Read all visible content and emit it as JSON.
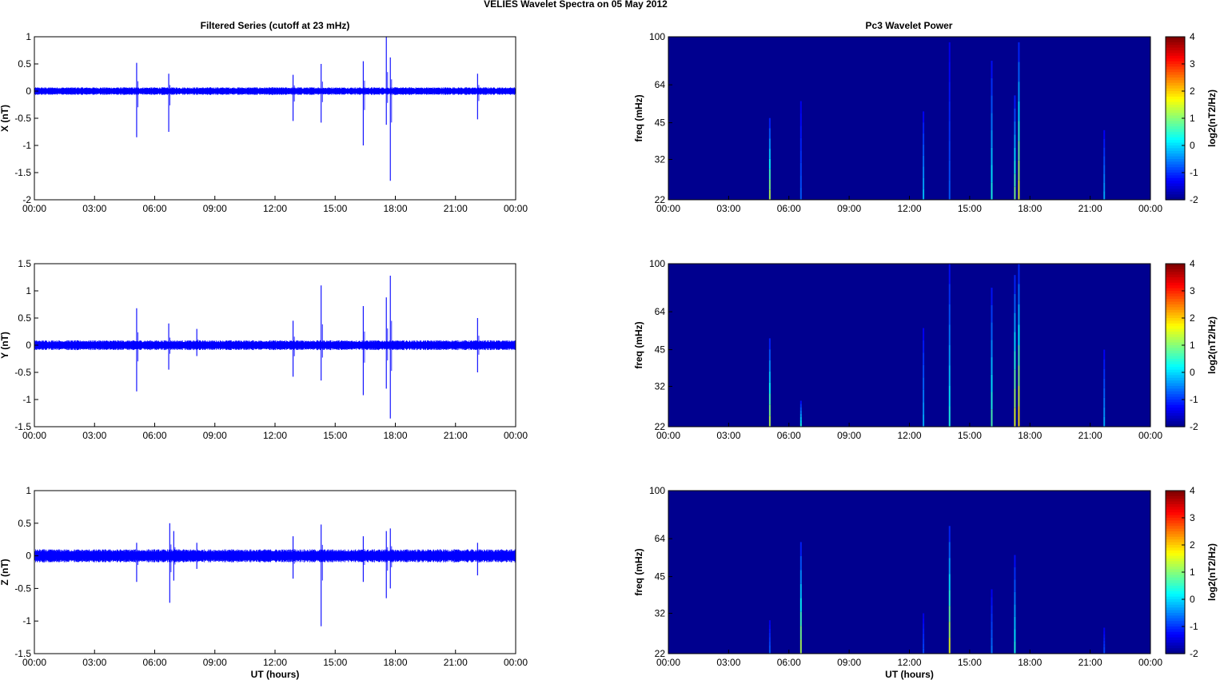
{
  "figure": {
    "title": "VELIES Wavelet Spectra on 05 May      2012",
    "left_title": "Filtered Series (cutoff at 23 mHz)",
    "right_title": "Pc3 Wavelet Power",
    "xlabel": "UT (hours)",
    "spectro_ylabel": "freq (mHz)",
    "colorbar_label": "log2(nT2/Hz)",
    "colors": {
      "trace": "#0000ff",
      "background": "#00008f"
    }
  },
  "chart_data": [
    {
      "type": "line",
      "title": "Filtered Series (cutoff at 23 mHz)",
      "ylabel": "X (nT)",
      "xlabel": "",
      "xlim": [
        "00:00",
        "24:00"
      ],
      "xticks": [
        "00:00",
        "03:00",
        "06:00",
        "09:00",
        "12:00",
        "15:00",
        "18:00",
        "21:00",
        "00:00"
      ],
      "ylim": [
        -2,
        1
      ],
      "yticks": [
        "1",
        "0.5",
        "0",
        "-0.5",
        "-1",
        "-1.5",
        "-2"
      ],
      "noise_amplitude": 0.07,
      "series": [
        {
          "spikes": [
            {
              "t": 5.1,
              "max": 0.52,
              "min": -0.85
            },
            {
              "t": 6.7,
              "max": 0.32,
              "min": -0.75
            },
            {
              "t": 12.9,
              "max": 0.3,
              "min": -0.55
            },
            {
              "t": 14.3,
              "max": 0.5,
              "min": -0.58
            },
            {
              "t": 16.4,
              "max": 0.55,
              "min": -1.0
            },
            {
              "t": 17.55,
              "max": 1.0,
              "min": -0.62
            },
            {
              "t": 17.75,
              "max": 0.62,
              "min": -1.65
            },
            {
              "t": 22.1,
              "max": 0.32,
              "min": -0.52
            }
          ]
        }
      ]
    },
    {
      "type": "line",
      "ylabel": "Y (nT)",
      "xlabel": "",
      "xlim": [
        "00:00",
        "24:00"
      ],
      "xticks": [
        "00:00",
        "03:00",
        "06:00",
        "09:00",
        "12:00",
        "15:00",
        "18:00",
        "21:00",
        "00:00"
      ],
      "ylim": [
        -1.5,
        1.5
      ],
      "yticks": [
        "1.5",
        "1",
        "0.5",
        "0",
        "-0.5",
        "-1",
        "-1.5"
      ],
      "noise_amplitude": 0.09,
      "series": [
        {
          "spikes": [
            {
              "t": 5.1,
              "max": 0.68,
              "min": -0.85
            },
            {
              "t": 6.7,
              "max": 0.4,
              "min": -0.45
            },
            {
              "t": 8.1,
              "max": 0.3,
              "min": -0.2
            },
            {
              "t": 12.9,
              "max": 0.45,
              "min": -0.58
            },
            {
              "t": 14.3,
              "max": 1.1,
              "min": -0.65
            },
            {
              "t": 16.4,
              "max": 0.72,
              "min": -0.92
            },
            {
              "t": 17.55,
              "max": 0.88,
              "min": -0.8
            },
            {
              "t": 17.75,
              "max": 1.28,
              "min": -1.35
            },
            {
              "t": 22.1,
              "max": 0.5,
              "min": -0.5
            }
          ]
        }
      ]
    },
    {
      "type": "line",
      "ylabel": "Z (nT)",
      "xlabel": "UT (hours)",
      "xlim": [
        "00:00",
        "24:00"
      ],
      "xticks": [
        "00:00",
        "03:00",
        "06:00",
        "09:00",
        "12:00",
        "15:00",
        "18:00",
        "21:00",
        "00:00"
      ],
      "ylim": [
        -1.5,
        1
      ],
      "yticks": [
        "1",
        "0.5",
        "0",
        "-0.5",
        "-1",
        "-1.5"
      ],
      "noise_amplitude": 0.1,
      "series": [
        {
          "spikes": [
            {
              "t": 5.1,
              "max": 0.2,
              "min": -0.4
            },
            {
              "t": 6.75,
              "max": 0.5,
              "min": -0.72
            },
            {
              "t": 6.95,
              "max": 0.38,
              "min": -0.38
            },
            {
              "t": 8.1,
              "max": 0.2,
              "min": -0.2
            },
            {
              "t": 12.9,
              "max": 0.3,
              "min": -0.35
            },
            {
              "t": 14.3,
              "max": 0.48,
              "min": -1.08
            },
            {
              "t": 16.4,
              "max": 0.3,
              "min": -0.4
            },
            {
              "t": 17.55,
              "max": 0.38,
              "min": -0.65
            },
            {
              "t": 17.75,
              "max": 0.42,
              "min": -0.5
            },
            {
              "t": 22.1,
              "max": 0.2,
              "min": -0.3
            }
          ]
        }
      ]
    },
    {
      "type": "heatmap",
      "title": "Pc3 Wavelet Power",
      "ylabel": "freq (mHz)",
      "xlabel": "",
      "xlim": [
        "00:00",
        "24:00"
      ],
      "xticks": [
        "00:00",
        "03:00",
        "06:00",
        "09:00",
        "12:00",
        "15:00",
        "18:00",
        "21:00",
        "00:00"
      ],
      "ylim": [
        22,
        100
      ],
      "yticks": [
        "100",
        "64",
        "45",
        "32",
        "22"
      ],
      "colorbar": {
        "label": "log2(nT2/Hz)",
        "range": [
          -2,
          4
        ],
        "ticks": [
          "4",
          "3",
          "2",
          "1",
          "0",
          "-1",
          "-2"
        ]
      },
      "streaks": [
        {
          "t": 5.05,
          "fmax": 47,
          "intensity": 0.45
        },
        {
          "t": 6.6,
          "fmax": 55,
          "intensity": 0.12
        },
        {
          "t": 12.7,
          "fmax": 50,
          "intensity": 0.22
        },
        {
          "t": 14.0,
          "fmax": 95,
          "intensity": 0.12
        },
        {
          "t": 16.1,
          "fmax": 80,
          "intensity": 0.3
        },
        {
          "t": 17.25,
          "fmax": 58,
          "intensity": 0.4
        },
        {
          "t": 17.45,
          "fmax": 95,
          "intensity": 0.5
        },
        {
          "t": 21.7,
          "fmax": 42,
          "intensity": 0.2
        }
      ]
    },
    {
      "type": "heatmap",
      "ylabel": "freq (mHz)",
      "xlabel": "",
      "xlim": [
        "00:00",
        "24:00"
      ],
      "xticks": [
        "00:00",
        "03:00",
        "06:00",
        "09:00",
        "12:00",
        "15:00",
        "18:00",
        "21:00",
        "00:00"
      ],
      "ylim": [
        22,
        100
      ],
      "yticks": [
        "100",
        "64",
        "45",
        "32",
        "22"
      ],
      "colorbar": {
        "label": "log2(nT2/Hz)",
        "range": [
          -2,
          4
        ],
        "ticks": [
          "4",
          "3",
          "2",
          "1",
          "0",
          "-1",
          "-2"
        ]
      },
      "streaks": [
        {
          "t": 5.05,
          "fmax": 50,
          "intensity": 0.45
        },
        {
          "t": 6.6,
          "fmax": 28,
          "intensity": 0.3
        },
        {
          "t": 12.7,
          "fmax": 55,
          "intensity": 0.2
        },
        {
          "t": 14.0,
          "fmax": 100,
          "intensity": 0.3
        },
        {
          "t": 16.1,
          "fmax": 80,
          "intensity": 0.35
        },
        {
          "t": 17.25,
          "fmax": 90,
          "intensity": 0.5
        },
        {
          "t": 17.45,
          "fmax": 100,
          "intensity": 0.55
        },
        {
          "t": 21.7,
          "fmax": 45,
          "intensity": 0.2
        }
      ]
    },
    {
      "type": "heatmap",
      "ylabel": "freq (mHz)",
      "xlabel": "UT (hours)",
      "xlim": [
        "00:00",
        "24:00"
      ],
      "xticks": [
        "00:00",
        "03:00",
        "06:00",
        "09:00",
        "12:00",
        "15:00",
        "18:00",
        "21:00",
        "00:00"
      ],
      "ylim": [
        22,
        100
      ],
      "yticks": [
        "100",
        "64",
        "45",
        "32",
        "22"
      ],
      "colorbar": {
        "label": "log2(nT2/Hz)",
        "range": [
          -2,
          4
        ],
        "ticks": [
          "4",
          "3",
          "2",
          "1",
          "0",
          "-1",
          "-2"
        ]
      },
      "streaks": [
        {
          "t": 5.05,
          "fmax": 30,
          "intensity": 0.12
        },
        {
          "t": 6.6,
          "fmax": 62,
          "intensity": 0.45
        },
        {
          "t": 12.7,
          "fmax": 32,
          "intensity": 0.1
        },
        {
          "t": 14.0,
          "fmax": 72,
          "intensity": 0.5
        },
        {
          "t": 16.1,
          "fmax": 40,
          "intensity": 0.15
        },
        {
          "t": 17.25,
          "fmax": 55,
          "intensity": 0.3
        },
        {
          "t": 21.7,
          "fmax": 28,
          "intensity": 0.1
        }
      ]
    }
  ]
}
